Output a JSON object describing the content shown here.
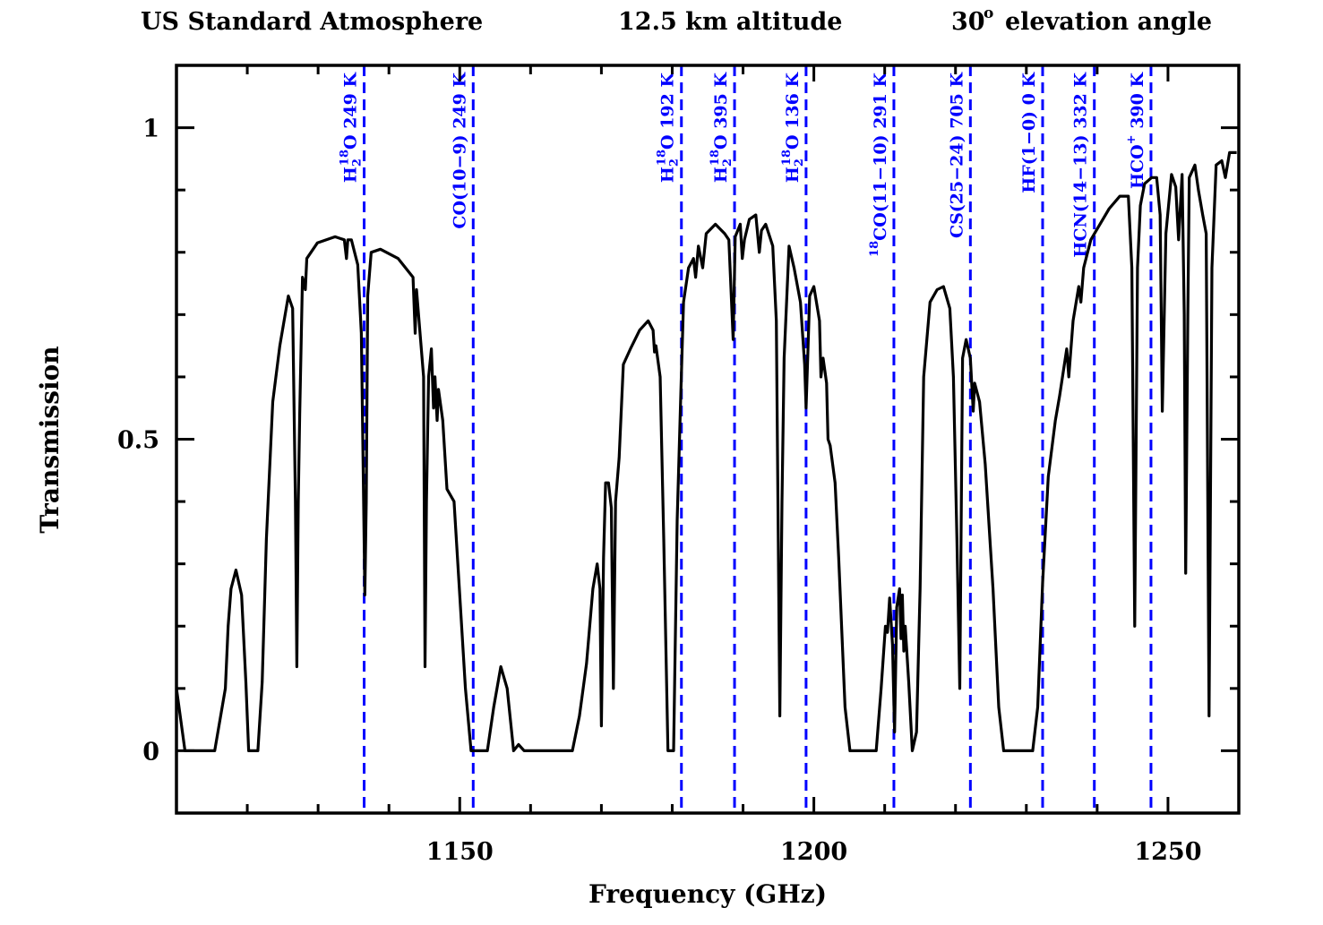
{
  "chart_data": {
    "type": "line",
    "title": {
      "part1": "US Standard Atmosphere",
      "part2": "12.5 km altitude",
      "part3_value": "30",
      "part3_sup": "o",
      "part3_rest": "elevation angle"
    },
    "xlabel": "Frequency (GHz)",
    "ylabel": "Transmission",
    "xlim": [
      1110,
      1260
    ],
    "ylim": [
      -0.1,
      1.1
    ],
    "x_major_ticks": [
      1150,
      1200,
      1250
    ],
    "x_minor_step": 10,
    "y_major_ticks": [
      0,
      0.5,
      1
    ],
    "y_tick_labels": [
      "0",
      "0.5",
      "1"
    ],
    "x_tick_labels": [
      "1150",
      "1200",
      "1250"
    ],
    "y_minor_step": 0.1,
    "grid": false,
    "colors": {
      "curve": "#000000",
      "lines": "#0000ff",
      "axes": "#000000"
    },
    "series": [
      {
        "name": "Transmission",
        "points": [
          [
            1110.0,
            0.1
          ],
          [
            1111.2,
            0.0
          ],
          [
            1115.4,
            0.0
          ],
          [
            1116.9,
            0.1
          ],
          [
            1117.3,
            0.2
          ],
          [
            1117.7,
            0.26
          ],
          [
            1118.4,
            0.29
          ],
          [
            1119.2,
            0.25
          ],
          [
            1119.8,
            0.11
          ],
          [
            1120.2,
            0.0
          ],
          [
            1121.5,
            0.0
          ],
          [
            1122.1,
            0.11
          ],
          [
            1122.7,
            0.34
          ],
          [
            1123.6,
            0.56
          ],
          [
            1124.6,
            0.65
          ],
          [
            1125.8,
            0.73
          ],
          [
            1126.4,
            0.71
          ],
          [
            1126.8,
            0.4
          ],
          [
            1127.0,
            0.135
          ],
          [
            1127.2,
            0.4
          ],
          [
            1127.4,
            0.54
          ],
          [
            1127.8,
            0.76
          ],
          [
            1128.2,
            0.74
          ],
          [
            1128.4,
            0.79
          ],
          [
            1129.9,
            0.815
          ],
          [
            1132.4,
            0.825
          ],
          [
            1133.7,
            0.82
          ],
          [
            1134.0,
            0.79
          ],
          [
            1134.2,
            0.82
          ],
          [
            1134.7,
            0.82
          ],
          [
            1135.6,
            0.78
          ],
          [
            1136.1,
            0.67
          ],
          [
            1136.5,
            0.34
          ],
          [
            1136.6,
            0.25
          ],
          [
            1136.8,
            0.4
          ],
          [
            1137.0,
            0.73
          ],
          [
            1137.5,
            0.8
          ],
          [
            1138.8,
            0.805
          ],
          [
            1141.3,
            0.79
          ],
          [
            1143.4,
            0.76
          ],
          [
            1143.7,
            0.67
          ],
          [
            1143.9,
            0.74
          ],
          [
            1144.9,
            0.6
          ],
          [
            1145.1,
            0.135
          ],
          [
            1145.3,
            0.4
          ],
          [
            1145.6,
            0.6
          ],
          [
            1146.0,
            0.645
          ],
          [
            1146.3,
            0.55
          ],
          [
            1146.5,
            0.6
          ],
          [
            1146.8,
            0.53
          ],
          [
            1147.0,
            0.58
          ],
          [
            1147.6,
            0.53
          ],
          [
            1148.2,
            0.42
          ],
          [
            1149.2,
            0.4
          ],
          [
            1150.8,
            0.1
          ],
          [
            1151.6,
            0.0
          ],
          [
            1153.9,
            0.0
          ],
          [
            1154.8,
            0.07
          ],
          [
            1155.8,
            0.135
          ],
          [
            1156.7,
            0.1
          ],
          [
            1157.6,
            0.0
          ],
          [
            1158.3,
            0.01
          ],
          [
            1159.1,
            0.0
          ],
          [
            1165.9,
            0.0
          ],
          [
            1166.9,
            0.056
          ],
          [
            1167.9,
            0.14
          ],
          [
            1168.8,
            0.26
          ],
          [
            1169.4,
            0.3
          ],
          [
            1169.8,
            0.26
          ],
          [
            1170.0,
            0.04
          ],
          [
            1170.3,
            0.31
          ],
          [
            1170.6,
            0.43
          ],
          [
            1171.0,
            0.43
          ],
          [
            1171.4,
            0.39
          ],
          [
            1171.7,
            0.1
          ],
          [
            1172.0,
            0.4
          ],
          [
            1172.5,
            0.47
          ],
          [
            1173.1,
            0.62
          ],
          [
            1174.1,
            0.645
          ],
          [
            1175.4,
            0.675
          ],
          [
            1176.6,
            0.69
          ],
          [
            1177.3,
            0.675
          ],
          [
            1177.5,
            0.64
          ],
          [
            1177.7,
            0.65
          ],
          [
            1178.3,
            0.6
          ],
          [
            1178.8,
            0.34
          ],
          [
            1179.4,
            0.0
          ],
          [
            1180.2,
            0.0
          ],
          [
            1180.7,
            0.37
          ],
          [
            1181.2,
            0.57
          ],
          [
            1181.6,
            0.72
          ],
          [
            1182.3,
            0.775
          ],
          [
            1183.0,
            0.79
          ],
          [
            1183.3,
            0.76
          ],
          [
            1183.7,
            0.81
          ],
          [
            1184.3,
            0.775
          ],
          [
            1184.8,
            0.83
          ],
          [
            1186.1,
            0.845
          ],
          [
            1187.4,
            0.83
          ],
          [
            1188.0,
            0.82
          ],
          [
            1188.6,
            0.66
          ],
          [
            1188.9,
            0.825
          ],
          [
            1189.6,
            0.845
          ],
          [
            1189.9,
            0.79
          ],
          [
            1190.2,
            0.82
          ],
          [
            1190.9,
            0.853
          ],
          [
            1191.8,
            0.86
          ],
          [
            1192.3,
            0.8
          ],
          [
            1192.6,
            0.835
          ],
          [
            1193.2,
            0.845
          ],
          [
            1194.2,
            0.81
          ],
          [
            1194.7,
            0.69
          ],
          [
            1195.2,
            0.056
          ],
          [
            1195.5,
            0.4
          ],
          [
            1195.8,
            0.63
          ],
          [
            1196.5,
            0.81
          ],
          [
            1197.2,
            0.775
          ],
          [
            1198.1,
            0.72
          ],
          [
            1198.7,
            0.62
          ],
          [
            1198.9,
            0.55
          ],
          [
            1199.1,
            0.62
          ],
          [
            1199.4,
            0.73
          ],
          [
            1200.0,
            0.745
          ],
          [
            1200.8,
            0.69
          ],
          [
            1201.0,
            0.6
          ],
          [
            1201.3,
            0.63
          ],
          [
            1201.8,
            0.59
          ],
          [
            1202.0,
            0.5
          ],
          [
            1202.3,
            0.49
          ],
          [
            1203.0,
            0.43
          ],
          [
            1203.5,
            0.31
          ],
          [
            1204.4,
            0.07
          ],
          [
            1205.1,
            0.0
          ],
          [
            1208.8,
            0.0
          ],
          [
            1209.5,
            0.1
          ],
          [
            1210.1,
            0.2
          ],
          [
            1210.4,
            0.19
          ],
          [
            1210.7,
            0.245
          ],
          [
            1211.1,
            0.17
          ],
          [
            1211.4,
            0.03
          ],
          [
            1211.7,
            0.23
          ],
          [
            1212.1,
            0.26
          ],
          [
            1212.3,
            0.18
          ],
          [
            1212.5,
            0.25
          ],
          [
            1212.7,
            0.16
          ],
          [
            1212.9,
            0.2
          ],
          [
            1213.4,
            0.11
          ],
          [
            1213.9,
            0.0
          ],
          [
            1214.5,
            0.03
          ],
          [
            1215.0,
            0.26
          ],
          [
            1215.5,
            0.6
          ],
          [
            1216.4,
            0.72
          ],
          [
            1217.4,
            0.74
          ],
          [
            1218.3,
            0.745
          ],
          [
            1219.2,
            0.71
          ],
          [
            1219.7,
            0.6
          ],
          [
            1220.2,
            0.34
          ],
          [
            1220.6,
            0.1
          ],
          [
            1221.0,
            0.63
          ],
          [
            1221.5,
            0.66
          ],
          [
            1222.1,
            0.63
          ],
          [
            1222.5,
            0.545
          ],
          [
            1222.7,
            0.59
          ],
          [
            1223.4,
            0.56
          ],
          [
            1224.2,
            0.46
          ],
          [
            1225.3,
            0.26
          ],
          [
            1226.1,
            0.07
          ],
          [
            1226.8,
            0.0
          ],
          [
            1230.9,
            0.0
          ],
          [
            1231.6,
            0.07
          ],
          [
            1232.3,
            0.27
          ],
          [
            1233.1,
            0.44
          ],
          [
            1234.1,
            0.53
          ],
          [
            1234.7,
            0.57
          ],
          [
            1235.7,
            0.645
          ],
          [
            1236.0,
            0.6
          ],
          [
            1236.4,
            0.66
          ],
          [
            1236.6,
            0.69
          ],
          [
            1237.4,
            0.745
          ],
          [
            1237.7,
            0.72
          ],
          [
            1238.1,
            0.775
          ],
          [
            1239.1,
            0.82
          ],
          [
            1240.4,
            0.845
          ],
          [
            1241.7,
            0.87
          ],
          [
            1243.2,
            0.89
          ],
          [
            1244.4,
            0.89
          ],
          [
            1244.9,
            0.775
          ],
          [
            1245.3,
            0.2
          ],
          [
            1245.7,
            0.775
          ],
          [
            1246.1,
            0.875
          ],
          [
            1246.7,
            0.91
          ],
          [
            1247.7,
            0.92
          ],
          [
            1248.4,
            0.92
          ],
          [
            1248.9,
            0.86
          ],
          [
            1249.2,
            0.545
          ],
          [
            1249.7,
            0.83
          ],
          [
            1250.5,
            0.925
          ],
          [
            1251.1,
            0.905
          ],
          [
            1251.5,
            0.82
          ],
          [
            1252.0,
            0.925
          ],
          [
            1252.3,
            0.7
          ],
          [
            1252.5,
            0.285
          ],
          [
            1252.8,
            0.7
          ],
          [
            1253.0,
            0.92
          ],
          [
            1253.8,
            0.94
          ],
          [
            1254.3,
            0.9
          ],
          [
            1254.9,
            0.86
          ],
          [
            1255.4,
            0.83
          ],
          [
            1255.8,
            0.056
          ],
          [
            1256.2,
            0.775
          ],
          [
            1256.8,
            0.94
          ],
          [
            1257.6,
            0.947
          ],
          [
            1258.1,
            0.92
          ],
          [
            1258.7,
            0.96
          ],
          [
            1259.7,
            0.96
          ]
        ]
      }
    ],
    "lines": [
      {
        "freq": 1136.5,
        "mol": "H",
        "sub": "2",
        "sup": "18",
        "tail": "O 249 K"
      },
      {
        "freq": 1151.9,
        "mol": "CO(10−9) 249 K",
        "sub": "",
        "sup": "",
        "tail": ""
      },
      {
        "freq": 1181.3,
        "mol": "H",
        "sub": "2",
        "sup": "18",
        "tail": "O 192 K"
      },
      {
        "freq": 1188.8,
        "mol": "H",
        "sub": "2",
        "sup": "18",
        "tail": "O 395 K"
      },
      {
        "freq": 1198.9,
        "mol": "H",
        "sub": "2",
        "sup": "18",
        "tail": "O 136 K"
      },
      {
        "freq": 1211.3,
        "mol": "",
        "sub": "",
        "sup": "18",
        "tail": "CO(11−10) 291 K"
      },
      {
        "freq": 1222.1,
        "mol": "CS(25−24) 705 K",
        "sub": "",
        "sup": "",
        "tail": ""
      },
      {
        "freq": 1232.3,
        "mol": "HF(1−0) 0 K",
        "sub": "",
        "sup": "",
        "tail": ""
      },
      {
        "freq": 1239.6,
        "mol": "HCN(14−13) 332 K",
        "sub": "",
        "sup": "",
        "tail": ""
      },
      {
        "freq": 1247.6,
        "mol": "HCO",
        "sub": "",
        "sup": "+",
        "tail": " 390 K"
      }
    ]
  }
}
